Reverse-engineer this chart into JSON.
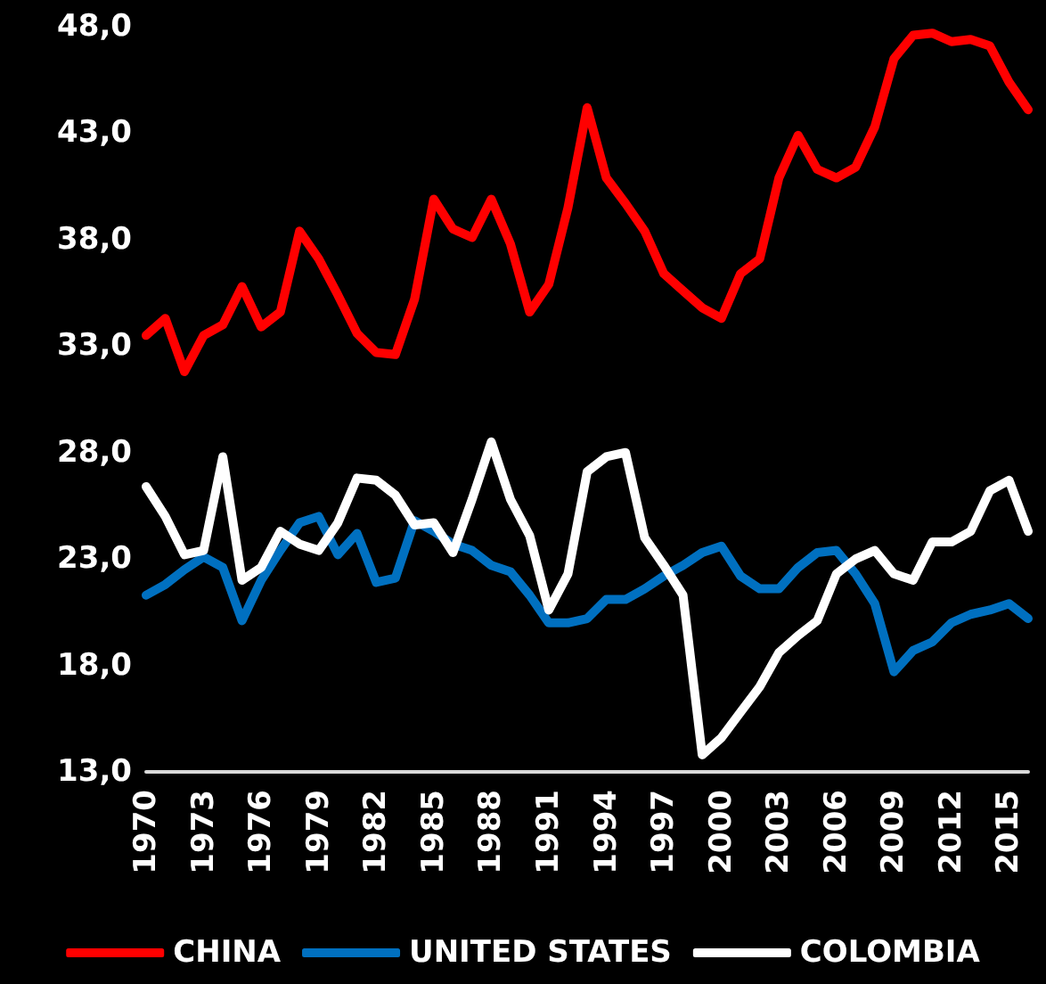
{
  "chart_data": {
    "type": "line",
    "categories": [
      "1970",
      null,
      null,
      "1973",
      null,
      null,
      "1976",
      null,
      null,
      "1979",
      null,
      null,
      "1982",
      null,
      null,
      "1985",
      null,
      null,
      "1988",
      null,
      null,
      "1991",
      null,
      null,
      "1994",
      null,
      null,
      "1997",
      null,
      null,
      "2000",
      null,
      null,
      "2003",
      null,
      null,
      "2006",
      null,
      null,
      "2009",
      null,
      null,
      "2012",
      null,
      null,
      "2015",
      null
    ],
    "series": [
      {
        "name": "CHINA",
        "color": "#ff0000",
        "values": [
          33.5,
          34.3,
          31.8,
          33.5,
          34.0,
          35.8,
          33.9,
          34.6,
          38.4,
          37.1,
          35.4,
          33.6,
          32.7,
          32.6,
          35.2,
          39.9,
          38.5,
          38.1,
          39.9,
          37.8,
          34.6,
          35.9,
          39.5,
          44.2,
          40.9,
          39.7,
          38.4,
          36.4,
          35.6,
          34.8,
          34.3,
          36.4,
          37.1,
          40.9,
          42.9,
          41.3,
          40.9,
          41.4,
          43.3,
          46.5,
          47.6,
          47.7,
          47.3,
          47.4,
          47.1,
          45.4,
          44.1
        ]
      },
      {
        "name": "UNITED STATES",
        "color": "#0070c0",
        "values": [
          21.3,
          21.8,
          22.5,
          23.1,
          22.6,
          20.1,
          22.0,
          23.4,
          24.7,
          25.0,
          23.2,
          24.2,
          21.9,
          22.1,
          24.8,
          24.3,
          23.7,
          23.4,
          22.7,
          22.4,
          21.3,
          20.0,
          20.0,
          20.2,
          21.1,
          21.1,
          21.6,
          22.2,
          22.7,
          23.3,
          23.6,
          22.2,
          21.6,
          21.6,
          22.6,
          23.3,
          23.4,
          22.3,
          20.9,
          17.7,
          18.7,
          19.1,
          20.0,
          20.4,
          20.6,
          20.9,
          20.2
        ]
      },
      {
        "name": "COLOMBIA",
        "color": "#ffffff",
        "values": [
          26.4,
          25.0,
          23.2,
          23.4,
          27.8,
          22.0,
          22.6,
          24.3,
          23.7,
          23.4,
          24.7,
          26.8,
          26.7,
          26.0,
          24.6,
          24.7,
          23.3,
          25.8,
          28.5,
          25.8,
          24.1,
          20.6,
          22.3,
          27.1,
          27.8,
          28.0,
          24.0,
          22.7,
          21.3,
          13.8,
          14.6,
          15.8,
          17.0,
          18.6,
          19.4,
          20.1,
          22.3,
          23.0,
          23.4,
          22.3,
          22.0,
          23.8,
          23.8,
          24.3,
          26.2,
          26.7,
          24.3
        ]
      }
    ],
    "ylim": [
      13,
      48
    ],
    "yticks": [
      {
        "value": 13,
        "label": "13,0"
      },
      {
        "value": 18,
        "label": "18,0"
      },
      {
        "value": 23,
        "label": "23,0"
      },
      {
        "value": 28,
        "label": "28,0"
      },
      {
        "value": 33,
        "label": "33,0"
      },
      {
        "value": 38,
        "label": "38,0"
      },
      {
        "value": 43,
        "label": "43,0"
      },
      {
        "value": 48,
        "label": "48,0"
      }
    ],
    "grid": false,
    "legend": "bottom",
    "marker": "none",
    "line_style": "solid"
  }
}
